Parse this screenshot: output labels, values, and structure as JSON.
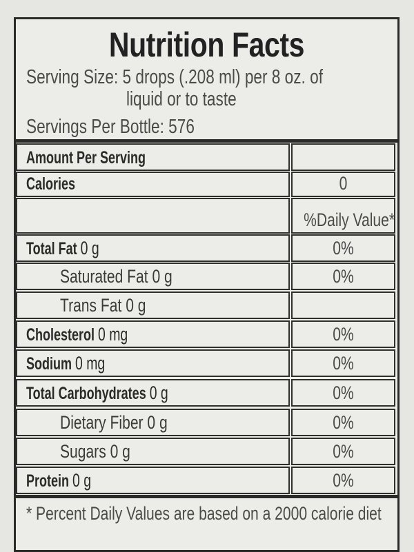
{
  "title": "Nutrition Facts",
  "serving_size_line1": "Serving Size: 5 drops (.208 ml) per 8 oz. of",
  "serving_size_line2": "liquid or to taste",
  "servings_per_bottle": "Servings Per Bottle: 576",
  "amount_per_serving": "Amount Per Serving",
  "calories": {
    "label": "Calories",
    "value": "0"
  },
  "daily_value_header": "%Daily Value*",
  "nutrients": [
    {
      "name": "Total Fat",
      "amount": "0 g",
      "dv": "0%"
    },
    {
      "name": "Saturated Fat",
      "amount": "0 g",
      "dv": "0%"
    },
    {
      "name": "Trans Fat",
      "amount": "0 g",
      "dv": ""
    },
    {
      "name": "Cholesterol",
      "amount": "0 mg",
      "dv": "0%"
    },
    {
      "name": "Sodium",
      "amount": "0 mg",
      "dv": "0%"
    },
    {
      "name": "Total Carbohydrates",
      "amount": "0 g",
      "dv": "0%"
    },
    {
      "name": "Dietary Fiber",
      "amount": "0 g",
      "dv": "0%"
    },
    {
      "name": "Sugars",
      "amount": "0 g",
      "dv": "0%"
    },
    {
      "name": "Protein",
      "amount": "0 g",
      "dv": "0%"
    }
  ],
  "footnote": "* Percent Daily Values are based on a 2000 calorie diet"
}
